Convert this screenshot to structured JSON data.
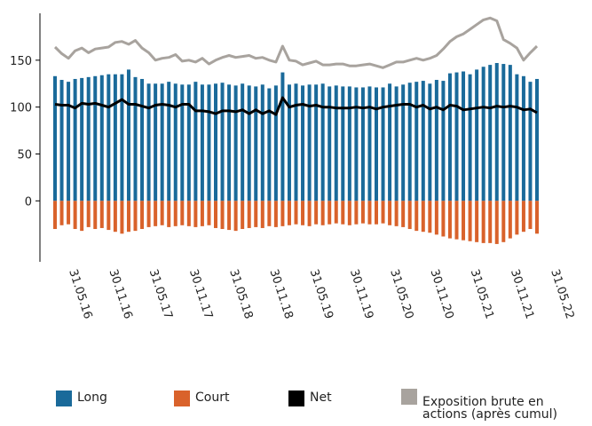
{
  "chart_data": {
    "type": "bar",
    "categories": [
      "31.05.16",
      null,
      null,
      null,
      null,
      null,
      "30.11.16",
      null,
      null,
      null,
      null,
      null,
      "31.05.17",
      null,
      null,
      null,
      null,
      null,
      "30.11.17",
      null,
      null,
      null,
      null,
      null,
      "31.05.18",
      null,
      null,
      null,
      null,
      null,
      "30.11.18",
      null,
      null,
      null,
      null,
      null,
      "31.05.19",
      null,
      null,
      null,
      null,
      null,
      "30.11.19",
      null,
      null,
      null,
      null,
      null,
      "31.05.20",
      null,
      null,
      null,
      null,
      null,
      "30.11.20",
      null,
      null,
      null,
      null,
      null,
      "31.05.21",
      null,
      null,
      null,
      null,
      null,
      "30.11.21",
      null,
      null,
      null,
      null,
      null,
      "31.05.22"
    ],
    "series": [
      {
        "name": "Long",
        "color": "#1a6a9a",
        "kind": "bar",
        "values": [
          133,
          129,
          127,
          130,
          131,
          132,
          133,
          134,
          135,
          135,
          135,
          140,
          132,
          130,
          125,
          125,
          125,
          127,
          125,
          124,
          124,
          127,
          124,
          124,
          125,
          126,
          124,
          123,
          125,
          123,
          122,
          124,
          120,
          123,
          137,
          124,
          125,
          123,
          124,
          124,
          125,
          122,
          123,
          122,
          122,
          121,
          121,
          122,
          121,
          121,
          125,
          122,
          124,
          126,
          127,
          128,
          125,
          129,
          128,
          136,
          137,
          138,
          135,
          140,
          143,
          145,
          147,
          146,
          145,
          135,
          133,
          127,
          130
        ]
      },
      {
        "name": "Court",
        "color": "#d9622b",
        "kind": "bar",
        "values": [
          -30,
          -26,
          -25,
          -30,
          -32,
          -28,
          -30,
          -29,
          -31,
          -33,
          -35,
          -33,
          -32,
          -30,
          -28,
          -27,
          -26,
          -28,
          -27,
          -26,
          -27,
          -28,
          -27,
          -26,
          -29,
          -30,
          -31,
          -32,
          -30,
          -29,
          -28,
          -29,
          -27,
          -28,
          -27,
          -26,
          -25,
          -26,
          -27,
          -25,
          -26,
          -25,
          -24,
          -25,
          -26,
          -25,
          -24,
          -25,
          -25,
          -24,
          -26,
          -27,
          -28,
          -30,
          -32,
          -33,
          -34,
          -36,
          -38,
          -40,
          -41,
          -42,
          -43,
          -44,
          -45,
          -45,
          -46,
          -44,
          -40,
          -36,
          -33,
          -30,
          -35
        ]
      },
      {
        "name": "Net",
        "color": "#000000",
        "kind": "line",
        "values": [
          103,
          102,
          102,
          99,
          104,
          103,
          104,
          102,
          100,
          104,
          108,
          103,
          103,
          101,
          99,
          102,
          103,
          102,
          100,
          103,
          103,
          96,
          96,
          95,
          93,
          96,
          96,
          95,
          97,
          93,
          97,
          93,
          96,
          92,
          110,
          100,
          102,
          103,
          101,
          102,
          100,
          100,
          99,
          99,
          99,
          100,
          99,
          100,
          98,
          100,
          101,
          102,
          103,
          103,
          100,
          102,
          98,
          100,
          97,
          102,
          101,
          97,
          98,
          99,
          100,
          99,
          101,
          100,
          101,
          100,
          97,
          98,
          94
        ]
      },
      {
        "name": "Exposition brute en actions (après cumul)",
        "color": "#a8a39e",
        "kind": "line",
        "values": [
          164,
          157,
          152,
          160,
          163,
          158,
          162,
          163,
          164,
          169,
          170,
          167,
          171,
          163,
          158,
          150,
          152,
          153,
          156,
          149,
          150,
          148,
          152,
          146,
          150,
          153,
          155,
          153,
          154,
          155,
          152,
          153,
          150,
          148,
          165,
          150,
          149,
          145,
          147,
          149,
          145,
          145,
          146,
          146,
          144,
          144,
          145,
          146,
          144,
          142,
          145,
          148,
          148,
          150,
          152,
          150,
          152,
          155,
          162,
          170,
          175,
          178,
          183,
          188,
          193,
          195,
          192,
          172,
          168,
          163,
          150,
          158,
          165
        ]
      }
    ],
    "ylim": [
      -65,
      200
    ],
    "yticks": [
      0,
      50,
      100,
      150
    ]
  }
}
